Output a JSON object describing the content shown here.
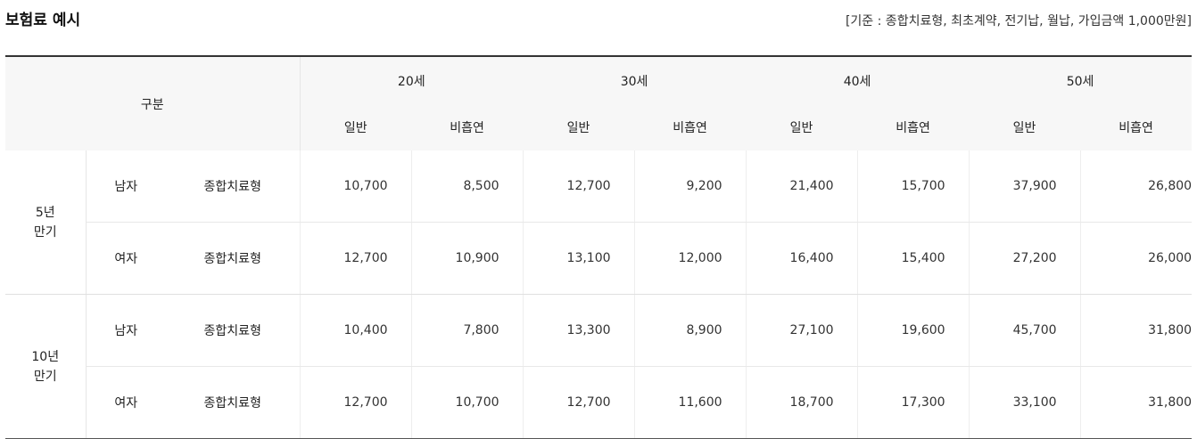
{
  "title": "보험료 예시",
  "basis": "[기준 : 종합치료형, 최초계약, 전기납, 월납, 가입금액 1,000만원]",
  "table": {
    "category_header": "구분",
    "ages": [
      "20세",
      "30세",
      "40세",
      "50세"
    ],
    "sub_headers": [
      "일반",
      "비흡연"
    ],
    "groups": [
      {
        "term_line1": "5년",
        "term_line2": "만기",
        "rows": [
          {
            "gender": "남자",
            "type": "종합치료형",
            "values": [
              "10,700",
              "8,500",
              "12,700",
              "9,200",
              "21,400",
              "15,700",
              "37,900",
              "26,800"
            ]
          },
          {
            "gender": "여자",
            "type": "종합치료형",
            "values": [
              "12,700",
              "10,900",
              "13,100",
              "12,000",
              "16,400",
              "15,400",
              "27,200",
              "26,000"
            ]
          }
        ]
      },
      {
        "term_line1": "10년",
        "term_line2": "만기",
        "rows": [
          {
            "gender": "남자",
            "type": "종합치료형",
            "values": [
              "10,400",
              "7,800",
              "13,300",
              "8,900",
              "27,100",
              "19,600",
              "45,700",
              "31,800"
            ]
          },
          {
            "gender": "여자",
            "type": "종합치료형",
            "values": [
              "12,700",
              "10,700",
              "12,700",
              "11,600",
              "18,700",
              "17,300",
              "33,100",
              "31,800"
            ]
          }
        ]
      }
    ]
  }
}
